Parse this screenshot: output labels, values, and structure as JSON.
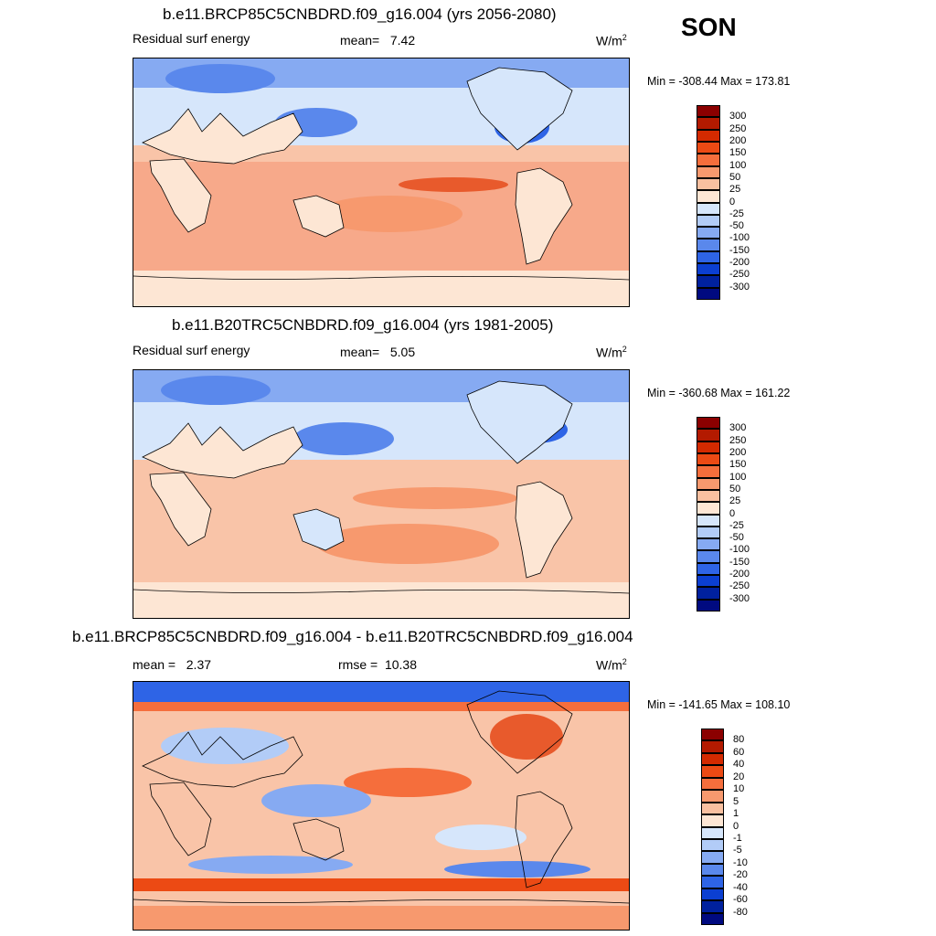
{
  "season": "SON",
  "panels": [
    {
      "title": "b.e11.BRCP85C5CNBDRD.f09_g16.004 (yrs 2056-2080)",
      "left_label": "Residual surf energy",
      "mean_label": "mean=",
      "mean_value": "7.42",
      "units": "W/m",
      "units_sup": "2",
      "minmax": "Min = -308.44 Max = 173.81",
      "colorbar": {
        "labels": [
          "300",
          "250",
          "200",
          "150",
          "100",
          "50",
          "25",
          "0",
          "-25",
          "-50",
          "-100",
          "-150",
          "-200",
          "-250",
          "-300"
        ],
        "colors": [
          "#8b0000",
          "#b31a00",
          "#d42a00",
          "#ec4a14",
          "#f56e3c",
          "#f7996e",
          "#f9c0a0",
          "#fde6d4",
          "#d6e6fb",
          "#b2ccf7",
          "#86aaf2",
          "#5a88ec",
          "#2e64e6",
          "#0b3fd1",
          "#00219e",
          "#000a80"
        ]
      }
    },
    {
      "title": "b.e11.B20TRC5CNBDRD.f09_g16.004 (yrs 1981-2005)",
      "left_label": "Residual surf energy",
      "mean_label": "mean=",
      "mean_value": "5.05",
      "units": "W/m",
      "units_sup": "2",
      "minmax": "Min = -360.68 Max = 161.22",
      "colorbar": {
        "labels": [
          "300",
          "250",
          "200",
          "150",
          "100",
          "50",
          "25",
          "0",
          "-25",
          "-50",
          "-100",
          "-150",
          "-200",
          "-250",
          "-300"
        ],
        "colors": [
          "#8b0000",
          "#b31a00",
          "#d42a00",
          "#ec4a14",
          "#f56e3c",
          "#f7996e",
          "#f9c0a0",
          "#fde6d4",
          "#d6e6fb",
          "#b2ccf7",
          "#86aaf2",
          "#5a88ec",
          "#2e64e6",
          "#0b3fd1",
          "#00219e",
          "#000a80"
        ]
      }
    },
    {
      "title": "b.e11.BRCP85C5CNBDRD.f09_g16.004 - b.e11.B20TRC5CNBDRD.f09_g16.004",
      "left_label": "mean =",
      "mean_value": "2.37",
      "rmse_label": "rmse =",
      "rmse_value": "10.38",
      "units": "W/m",
      "units_sup": "2",
      "minmax": "Min = -141.65 Max = 108.10",
      "colorbar": {
        "labels": [
          "80",
          "60",
          "40",
          "20",
          "10",
          "5",
          "1",
          "0",
          "-1",
          "-5",
          "-10",
          "-20",
          "-40",
          "-60",
          "-80"
        ],
        "colors": [
          "#8b0000",
          "#b31a00",
          "#d42a00",
          "#ec4a14",
          "#f56e3c",
          "#f7996e",
          "#f9c0a0",
          "#fde6d4",
          "#d6e6fb",
          "#b2ccf7",
          "#86aaf2",
          "#5a88ec",
          "#2e64e6",
          "#0b3fd1",
          "#00219e",
          "#000a80"
        ]
      }
    }
  ],
  "map_colors": {
    "ocean_warm": "#f7a98a",
    "ocean_mid": "#f9c4a8",
    "land": "#fde6d4",
    "arctic": "#5a88ec",
    "cool": "#b2ccf7",
    "pale_blue": "#d6e6fb",
    "hot": "#e85a2c",
    "coast": "#000000"
  }
}
